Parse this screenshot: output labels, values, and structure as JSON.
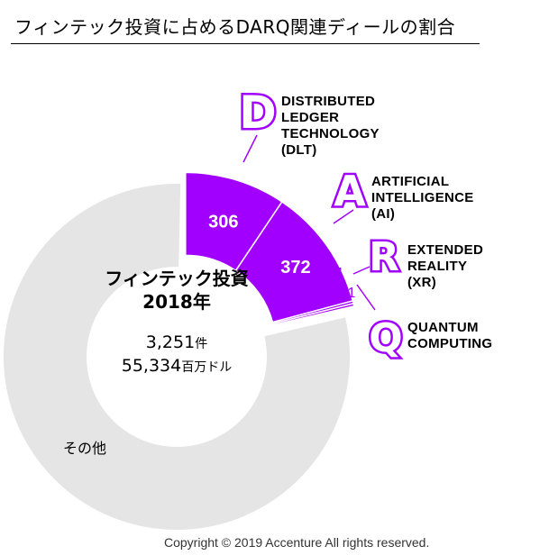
{
  "header": {
    "title": "フィンテック投資に占めるDARQ関連ディールの割合"
  },
  "center": {
    "title_line1": "フィンテック投資",
    "title_line2": "2018年",
    "deals_value": "3,251",
    "deals_unit": "件",
    "amount_value": "55,334",
    "amount_unit": "百万ドル"
  },
  "chart_data": {
    "type": "pie",
    "variant": "donut",
    "total": 3251,
    "slices": [
      {
        "label": "DLT",
        "value": 306,
        "display": "306",
        "color": "#a100ff"
      },
      {
        "label": "AI",
        "value": 372,
        "display": "372",
        "color": "#a100ff"
      },
      {
        "label": "XR",
        "value": 4,
        "display": "4",
        "color": "#a100ff"
      },
      {
        "label": "QC",
        "value": 1,
        "display": "1",
        "color": "#a100ff"
      },
      {
        "label": "その他",
        "value": 2568,
        "display": "",
        "color": "#e5e5e5"
      }
    ],
    "categories": [
      {
        "icon": "D",
        "name_lines": [
          "DISTRIBUTED",
          "LEDGER",
          "TECHNOLOGY",
          "(DLT)"
        ]
      },
      {
        "icon": "A",
        "name_lines": [
          "ARTIFICIAL",
          "INTELLIGENCE",
          "(AI)"
        ]
      },
      {
        "icon": "R",
        "name_lines": [
          "EXTENDED",
          "REALITY",
          "(XR)"
        ]
      },
      {
        "icon": "Q",
        "name_lines": [
          "QUANTUM",
          "COMPUTING"
        ]
      }
    ],
    "other_label": "その他"
  },
  "footer": {
    "copyright": "Copyright © 2019 Accenture  All rights reserved."
  },
  "colors": {
    "accent": "#a100ff",
    "other": "#e5e5e5"
  }
}
